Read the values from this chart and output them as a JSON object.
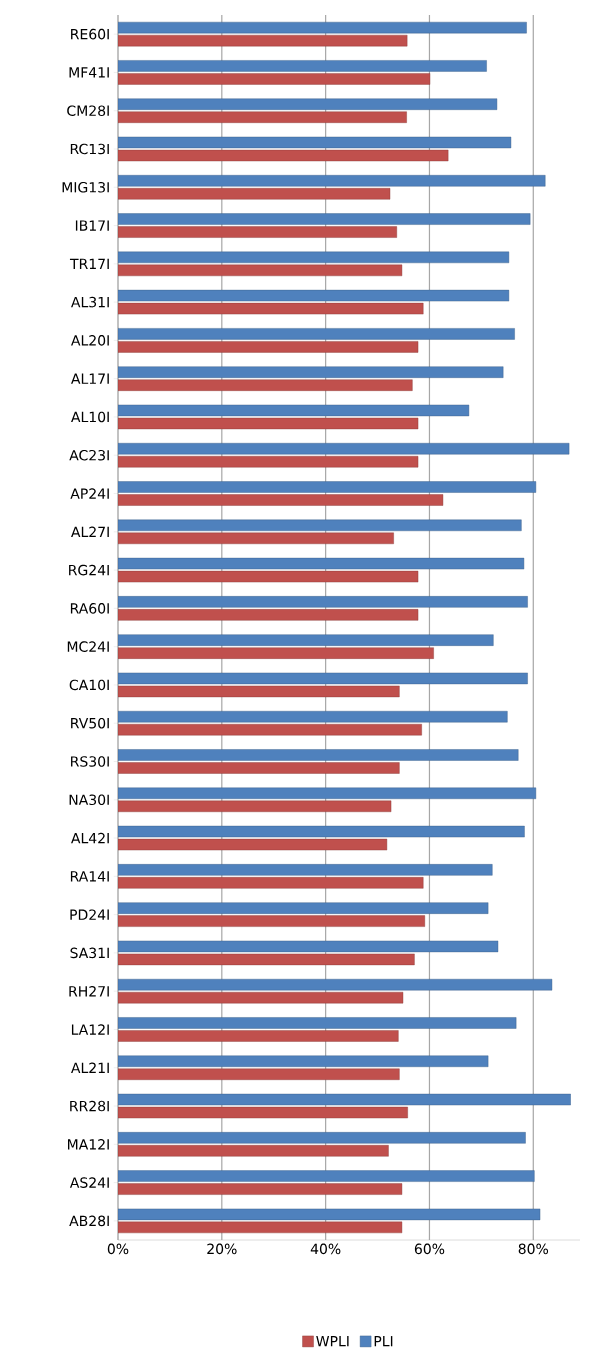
{
  "chart_data": {
    "type": "bar",
    "orientation": "horizontal",
    "categories": [
      "RE60I",
      "MF41I",
      "CM28I",
      "RC13I",
      "MIG13I",
      "IB17I",
      "TR17I",
      "AL31I",
      "AL20I",
      "AL17I",
      "AL10I",
      "AC23I",
      "AP24I",
      "AL27I",
      "RG24I",
      "RA60I",
      "MC24I",
      "CA10I",
      "RV50I",
      "RS30I",
      "NA30I",
      "AL42I",
      "RA14I",
      "PD24I",
      "SA31I",
      "RH27I",
      "LA12I",
      "AL21I",
      "RR28I",
      "MA12I",
      "AS24I",
      "AB28I"
    ],
    "series": [
      {
        "name": "WPLI",
        "color": "#c0504d",
        "values": [
          55.7,
          60.1,
          55.6,
          63.6,
          52.4,
          53.7,
          54.7,
          58.8,
          57.8,
          56.7,
          57.8,
          57.8,
          62.6,
          53.1,
          57.8,
          57.8,
          60.8,
          54.2,
          58.5,
          54.2,
          52.6,
          51.8,
          58.8,
          59.1,
          57.1,
          54.9,
          54.0,
          54.2,
          55.8,
          52.1,
          54.7,
          54.7
        ]
      },
      {
        "name": "PLI",
        "color": "#4f81bd",
        "values": [
          78.7,
          71.0,
          73.0,
          75.7,
          82.3,
          79.4,
          75.3,
          75.3,
          76.4,
          74.2,
          67.6,
          86.9,
          80.5,
          77.7,
          78.2,
          78.9,
          72.3,
          78.9,
          75.0,
          77.1,
          80.5,
          78.3,
          72.1,
          71.3,
          73.2,
          83.6,
          76.7,
          71.3,
          87.2,
          78.5,
          80.2,
          81.3
        ]
      }
    ],
    "xlim": [
      0,
      89
    ],
    "xticks": [
      {
        "value": 0,
        "label": "0%"
      },
      {
        "value": 20,
        "label": "20%"
      },
      {
        "value": 40,
        "label": "40%"
      },
      {
        "value": 60,
        "label": "60%"
      },
      {
        "value": 80,
        "label": "80%"
      }
    ],
    "grid": "x",
    "legend": "bottom"
  }
}
